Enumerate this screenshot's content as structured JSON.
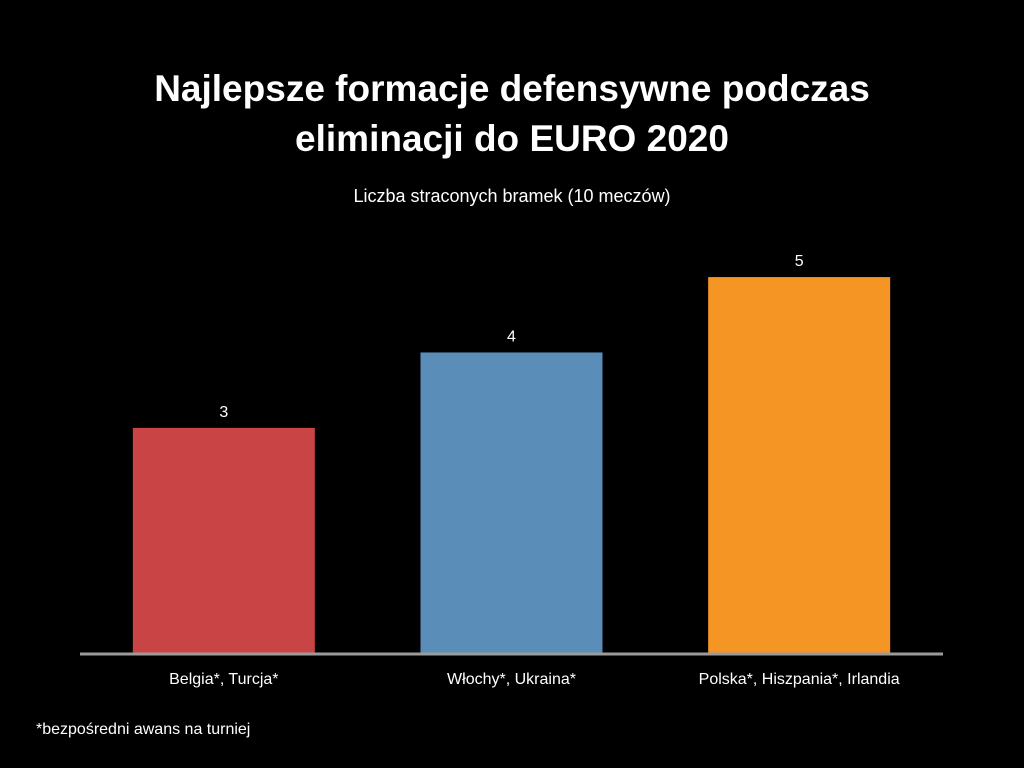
{
  "title_line1": "Najlepsze formacje defensywne podczas",
  "title_line2": "eliminacji do EURO 2020",
  "subtitle": "Liczba straconych bramek (10 meczów)",
  "footnote": "*bezpośredni awans na turniej",
  "colors": {
    "background": "#000000",
    "text": "#ffffff",
    "axis": "#9b9b9b"
  },
  "chart_data": {
    "type": "bar",
    "title": "Najlepsze formacje defensywne podczas eliminacji do EURO 2020",
    "subtitle": "Liczba straconych bramek (10 meczów)",
    "categories": [
      "Belgia*, Turcja*",
      "Włochy*, Ukraina*",
      "Polska*, Hiszpania*, Irlandia"
    ],
    "values": [
      3,
      4,
      5
    ],
    "colors": [
      "#c94444",
      "#5a8db8",
      "#f59523"
    ],
    "ylim": [
      0,
      5.2
    ],
    "grid": false,
    "legend": "none",
    "data_labels": true
  }
}
